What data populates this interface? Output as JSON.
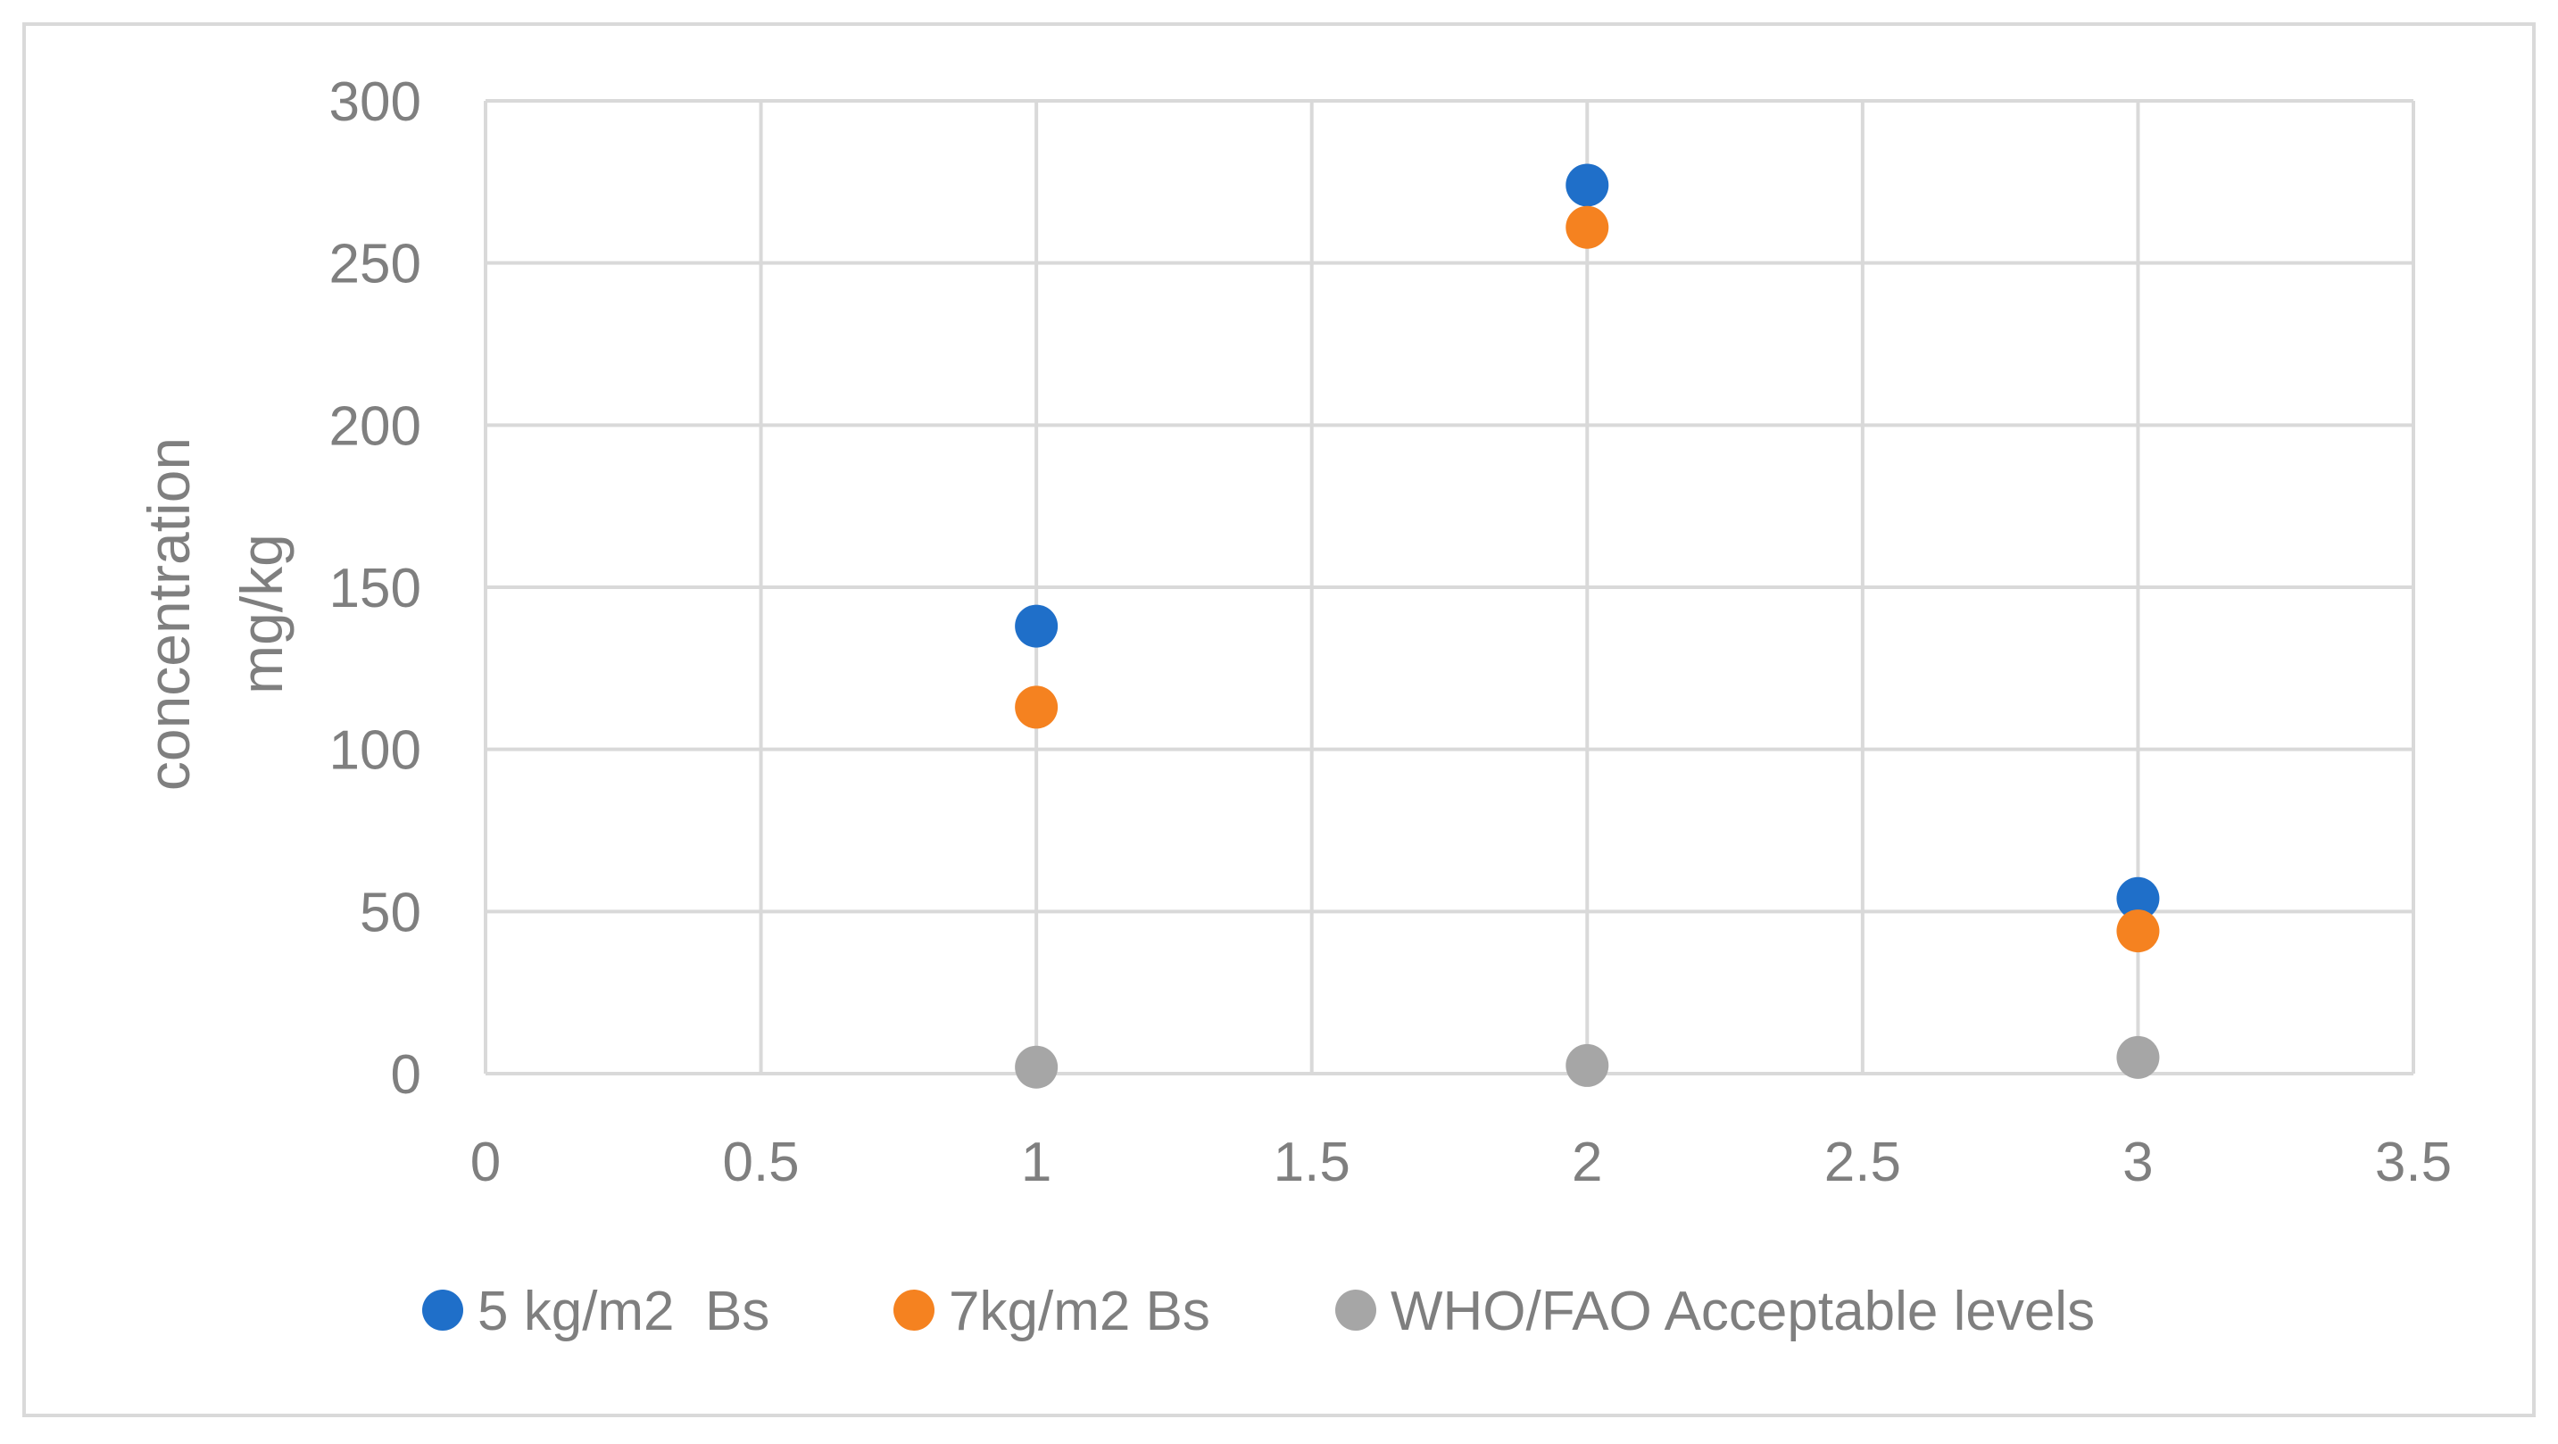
{
  "chart_data": {
    "type": "scatter",
    "title": "",
    "xlabel": "",
    "ylabel_lines": [
      "concentration",
      "mg/kg"
    ],
    "xlim": [
      0,
      3.5
    ],
    "ylim": [
      0,
      300
    ],
    "xticks": [
      0,
      0.5,
      1,
      1.5,
      2,
      2.5,
      3,
      3.5
    ],
    "xtick_labels": [
      "0",
      "0.5",
      "1",
      "1.5",
      "2",
      "2.5",
      "3",
      "3.5"
    ],
    "yticks": [
      0,
      50,
      100,
      150,
      200,
      250,
      300
    ],
    "ytick_labels": [
      "0",
      "50",
      "100",
      "150",
      "200",
      "250",
      "300"
    ],
    "grid": true,
    "legend_position": "bottom",
    "series": [
      {
        "name": "5 kg/m2  Bs",
        "color": "#1f6fc9",
        "x": [
          1,
          2,
          3
        ],
        "y": [
          138,
          274,
          54
        ]
      },
      {
        "name": "7kg/m2 Bs",
        "color": "#f58220",
        "x": [
          1,
          2,
          3
        ],
        "y": [
          113,
          261,
          44
        ]
      },
      {
        "name": "WHO/FAO Acceptable levels",
        "color": "#a6a6a6",
        "x": [
          1,
          2,
          3
        ],
        "y": [
          2,
          2.5,
          5
        ]
      }
    ]
  },
  "colors": {
    "grid": "#d9d9d9",
    "axis": "#d9d9d9",
    "tick_text": "#7f7f7f",
    "frame": "#d9d9d9"
  }
}
